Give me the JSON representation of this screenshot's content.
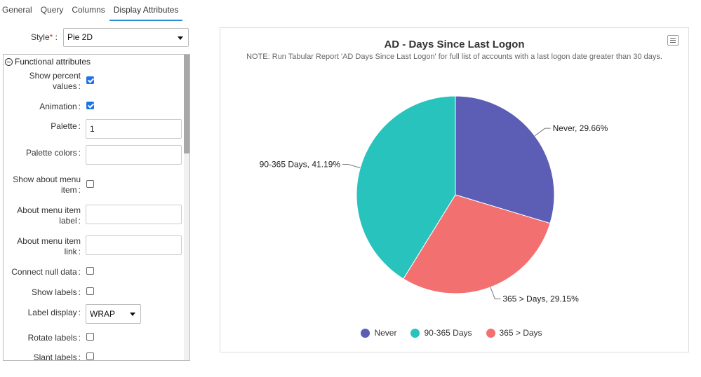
{
  "tabs": [
    {
      "label": "General"
    },
    {
      "label": "Query"
    },
    {
      "label": "Columns"
    },
    {
      "label": "Display Attributes"
    }
  ],
  "style": {
    "label": "Style",
    "required_mark": "*",
    "value": "Pie 2D"
  },
  "functional": {
    "header": "Functional attributes",
    "fields": {
      "show_percent": {
        "label": "Show percent values",
        "checked": true
      },
      "animation": {
        "label": "Animation",
        "checked": true
      },
      "palette": {
        "label": "Palette",
        "value": "1"
      },
      "palette_colors": {
        "label": "Palette colors",
        "value": ""
      },
      "show_about_menu": {
        "label": "Show about menu item",
        "checked": false
      },
      "about_menu_label": {
        "label": "About menu item label",
        "value": ""
      },
      "about_menu_link": {
        "label": "About menu item link",
        "value": ""
      },
      "connect_null": {
        "label": "Connect null data",
        "checked": false
      },
      "show_labels": {
        "label": "Show labels",
        "checked": false
      },
      "label_display": {
        "label": "Label display",
        "value": "WRAP"
      },
      "rotate_labels": {
        "label": "Rotate labels",
        "checked": false
      },
      "slant_labels": {
        "label": "Slant labels",
        "checked": false
      }
    }
  },
  "chart": {
    "menu_icon": "hamburger-menu-icon",
    "colors": {
      "never": "#5b5eb4",
      "days_90_365": "#29c3be",
      "days_365": "#f2706f"
    }
  },
  "chart_data": {
    "type": "pie",
    "title": "AD - Days Since Last Logon",
    "subtitle": "NOTE: Run Tabular Report 'AD Days Since Last Logon' for full list of accounts with a last logon date greater than 30 days.",
    "slices": [
      {
        "name": "Never",
        "value": 29.66,
        "label": "Never, 29.66%",
        "color": "#5b5eb4"
      },
      {
        "name": "365 > Days",
        "value": 29.15,
        "label": "365 > Days, 29.15%",
        "color": "#f2706f"
      },
      {
        "name": "90-365 Days",
        "value": 41.19,
        "label": "90-365 Days, 41.19%",
        "color": "#29c3be"
      }
    ],
    "legend": [
      {
        "label": "Never",
        "color": "#5b5eb4"
      },
      {
        "label": "90-365 Days",
        "color": "#29c3be"
      },
      {
        "label": "365 > Days",
        "color": "#f2706f"
      }
    ],
    "legend_position": "bottom"
  }
}
